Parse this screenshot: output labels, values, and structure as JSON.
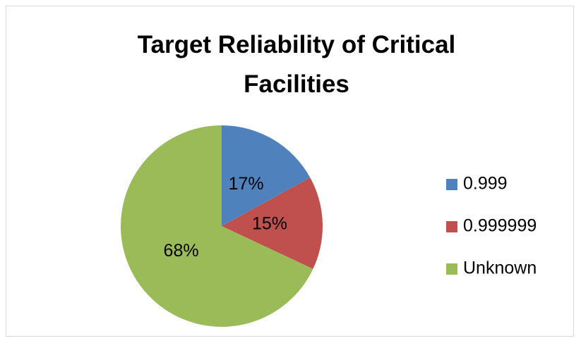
{
  "chart_data": {
    "type": "pie",
    "title": "Target Reliability of Critical Facilities",
    "categories": [
      "0.999",
      "0.999999",
      "Unknown"
    ],
    "values": [
      17,
      15,
      68
    ],
    "value_labels": [
      "17%",
      "15%",
      "68%"
    ],
    "colors": [
      "#4f81bd",
      "#c0504d",
      "#9bbb59"
    ],
    "legend": "right"
  }
}
